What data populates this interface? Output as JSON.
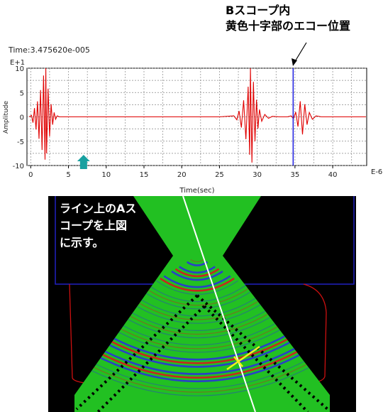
{
  "annotation": {
    "line1": "Bスコープ内",
    "line2": "黄色十字部のエコー位置"
  },
  "bscope_caption": {
    "line1": "ライン上のAス",
    "line2": "コープを上図",
    "line3": "に示す。"
  },
  "colors": {
    "signal": "#e00000",
    "cursor": "#1f1fe0",
    "marker": "#17a0a0",
    "bscope_green": "#22c022",
    "bscope_blue": "#2a3ad0",
    "bscope_red": "#d02020",
    "bscope_yellow": "#f0f020",
    "bscope_outline_red": "#cc1010",
    "bscope_outline_blue": "#2020c0"
  },
  "chart_data": {
    "type": "line",
    "readout": "Time:3.475620e-005",
    "y_exponent": "E+1",
    "x_exponent": "E-6",
    "xlabel": "Time(sec)",
    "ylabel": "Amplitude",
    "xlim": [
      -0.5,
      44.5
    ],
    "ylim": [
      -10,
      10
    ],
    "x_ticks": [
      0,
      5,
      10,
      15,
      20,
      25,
      30,
      35,
      40
    ],
    "y_ticks": [
      10,
      5,
      0,
      -5,
      -10
    ],
    "grid": true,
    "cursor_x": 34.76,
    "marker_x": 7.0,
    "series": [
      {
        "values_x": [
          -0.2,
          0.1,
          0.3,
          0.5,
          0.7,
          0.9,
          1.1,
          1.3,
          1.5,
          1.7,
          1.9,
          2.0,
          2.1,
          2.3,
          2.5,
          2.7,
          2.9,
          3.1,
          3.3,
          3.5,
          3.8,
          4.2,
          6,
          10,
          15,
          20,
          25,
          26.9,
          27.3,
          27.6,
          27.9,
          28.2,
          28.5,
          28.8,
          29.0,
          29.1,
          29.3,
          29.5,
          29.7,
          29.9,
          30.1,
          30.3,
          30.6,
          31.0,
          31.5,
          32,
          33,
          34,
          34.5,
          34.8,
          35.1,
          35.4,
          35.7,
          36.0,
          36.3,
          36.6,
          36.9,
          37.3,
          37.8,
          38.5,
          40,
          44.4
        ],
        "values_y": [
          0,
          0.3,
          -1.2,
          1.8,
          -2.6,
          3.2,
          -4.5,
          5.5,
          -6.8,
          8.5,
          -8.8,
          10,
          -7.5,
          5.8,
          -4,
          2.6,
          -1.6,
          0.9,
          -0.5,
          0.2,
          0,
          0,
          0,
          0,
          0,
          0,
          0,
          0.2,
          -0.6,
          1.2,
          -2.2,
          3.4,
          -4.6,
          6.2,
          -7.8,
          10,
          -9.4,
          7.2,
          -5.0,
          3.5,
          -2.4,
          1.5,
          -0.9,
          0.5,
          -0.3,
          0.1,
          0,
          0,
          0.2,
          -0.4,
          1.0,
          -2.0,
          3.2,
          -3.6,
          2.6,
          -1.6,
          0.9,
          -0.5,
          0.2,
          0,
          0,
          0
        ]
      }
    ]
  }
}
